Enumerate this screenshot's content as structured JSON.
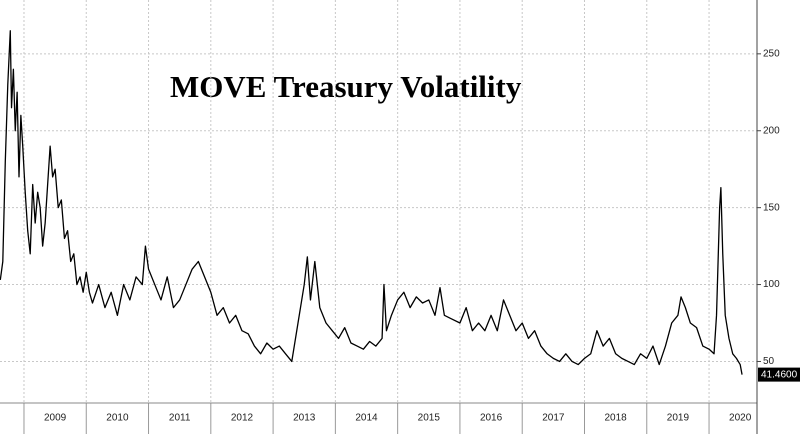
{
  "chart_data": {
    "type": "line",
    "title": "MOVE Treasury Volatility",
    "x": [
      2008.62,
      2008.66,
      2008.7,
      2008.74,
      2008.78,
      2008.8,
      2008.83,
      2008.86,
      2008.89,
      2008.92,
      2008.95,
      2008.98,
      2009.02,
      2009.06,
      2009.1,
      2009.14,
      2009.18,
      2009.22,
      2009.26,
      2009.3,
      2009.34,
      2009.38,
      2009.42,
      2009.46,
      2009.5,
      2009.55,
      2009.6,
      2009.65,
      2009.7,
      2009.75,
      2009.8,
      2009.85,
      2009.9,
      2009.95,
      2010.0,
      2010.05,
      2010.1,
      2010.2,
      2010.3,
      2010.4,
      2010.5,
      2010.6,
      2010.7,
      2010.8,
      2010.9,
      2010.95,
      2011.0,
      2011.1,
      2011.2,
      2011.3,
      2011.4,
      2011.5,
      2011.6,
      2011.7,
      2011.8,
      2011.9,
      2012.0,
      2012.1,
      2012.2,
      2012.3,
      2012.4,
      2012.5,
      2012.6,
      2012.7,
      2012.8,
      2012.9,
      2013.0,
      2013.1,
      2013.2,
      2013.3,
      2013.4,
      2013.5,
      2013.55,
      2013.6,
      2013.67,
      2013.75,
      2013.85,
      2013.95,
      2014.05,
      2014.15,
      2014.25,
      2014.35,
      2014.45,
      2014.55,
      2014.65,
      2014.75,
      2014.78,
      2014.82,
      2014.9,
      2015.0,
      2015.1,
      2015.2,
      2015.3,
      2015.4,
      2015.5,
      2015.6,
      2015.68,
      2015.75,
      2015.85,
      2016.0,
      2016.1,
      2016.2,
      2016.3,
      2016.4,
      2016.5,
      2016.6,
      2016.7,
      2016.8,
      2016.9,
      2017.0,
      2017.1,
      2017.2,
      2017.3,
      2017.4,
      2017.5,
      2017.6,
      2017.7,
      2017.8,
      2017.9,
      2018.0,
      2018.1,
      2018.2,
      2018.3,
      2018.4,
      2018.5,
      2018.6,
      2018.7,
      2018.8,
      2018.9,
      2019.0,
      2019.1,
      2019.2,
      2019.3,
      2019.4,
      2019.5,
      2019.55,
      2019.62,
      2019.7,
      2019.8,
      2019.9,
      2020.0,
      2020.08,
      2020.12,
      2020.17,
      2020.19,
      2020.22,
      2020.26,
      2020.32,
      2020.38,
      2020.44,
      2020.5,
      2020.53
    ],
    "series": [
      {
        "color": "#000000",
        "values": [
          103,
          115,
          180,
          230,
          265,
          215,
          240,
          200,
          225,
          170,
          210,
          190,
          160,
          135,
          120,
          165,
          140,
          160,
          150,
          125,
          140,
          165,
          190,
          170,
          175,
          150,
          155,
          130,
          135,
          115,
          120,
          100,
          105,
          95,
          108,
          95,
          88,
          100,
          85,
          95,
          80,
          100,
          90,
          105,
          100,
          125,
          110,
          100,
          90,
          105,
          85,
          90,
          100,
          110,
          115,
          105,
          95,
          80,
          85,
          75,
          80,
          70,
          68,
          60,
          55,
          62,
          58,
          60,
          55,
          50,
          75,
          100,
          118,
          90,
          115,
          85,
          75,
          70,
          65,
          72,
          62,
          60,
          58,
          63,
          60,
          65,
          100,
          70,
          80,
          90,
          95,
          85,
          92,
          88,
          90,
          80,
          98,
          80,
          78,
          75,
          85,
          70,
          75,
          70,
          80,
          70,
          90,
          80,
          70,
          75,
          65,
          70,
          60,
          55,
          52,
          50,
          55,
          50,
          48,
          52,
          55,
          70,
          60,
          65,
          55,
          52,
          50,
          48,
          55,
          52,
          60,
          48,
          60,
          75,
          80,
          92,
          85,
          75,
          72,
          60,
          58,
          55,
          80,
          150,
          163,
          120,
          80,
          65,
          55,
          52,
          48,
          41.46
        ],
        "value_labels": [
          null,
          null,
          null,
          null,
          null,
          null,
          null,
          null,
          null,
          null,
          null,
          null,
          null,
          null,
          null,
          null,
          null,
          null,
          null,
          null,
          null,
          null,
          null,
          null,
          null,
          null,
          null,
          null,
          null,
          null,
          null,
          null,
          null,
          null,
          null,
          null,
          null,
          null,
          null,
          null,
          null,
          null,
          null,
          null,
          null,
          null,
          null,
          null,
          null,
          null,
          null,
          null,
          null,
          null,
          null,
          null,
          null,
          null,
          null,
          null,
          null,
          null,
          null,
          null,
          null,
          null,
          null,
          null,
          null,
          null,
          null,
          null,
          null,
          null,
          null,
          null,
          null,
          null,
          null,
          null,
          null,
          null,
          null,
          null,
          null,
          null,
          null,
          null,
          null,
          null,
          null,
          null,
          null,
          null,
          null,
          null,
          null,
          null,
          null,
          null,
          null,
          null,
          null,
          null,
          null,
          null,
          null,
          null,
          null,
          null,
          null,
          null,
          null,
          null,
          null,
          null,
          null,
          null,
          null,
          null,
          null,
          null,
          null,
          null,
          null,
          null,
          null,
          null,
          null,
          null,
          null,
          null,
          null,
          null,
          null,
          null,
          null,
          null,
          null,
          null,
          null,
          null,
          null,
          null,
          null,
          null,
          null,
          null,
          null,
          null,
          null,
          "41.4600"
        ]
      }
    ],
    "xlim": [
      2008.615,
      2020.77
    ],
    "xticks": [
      2009,
      2010,
      2011,
      2012,
      2013,
      2014,
      2015,
      2016,
      2017,
      2018,
      2019,
      2020
    ],
    "ylim": [
      23,
      285
    ],
    "yticks": [
      50,
      100,
      150,
      200,
      250
    ],
    "grid": true
  }
}
